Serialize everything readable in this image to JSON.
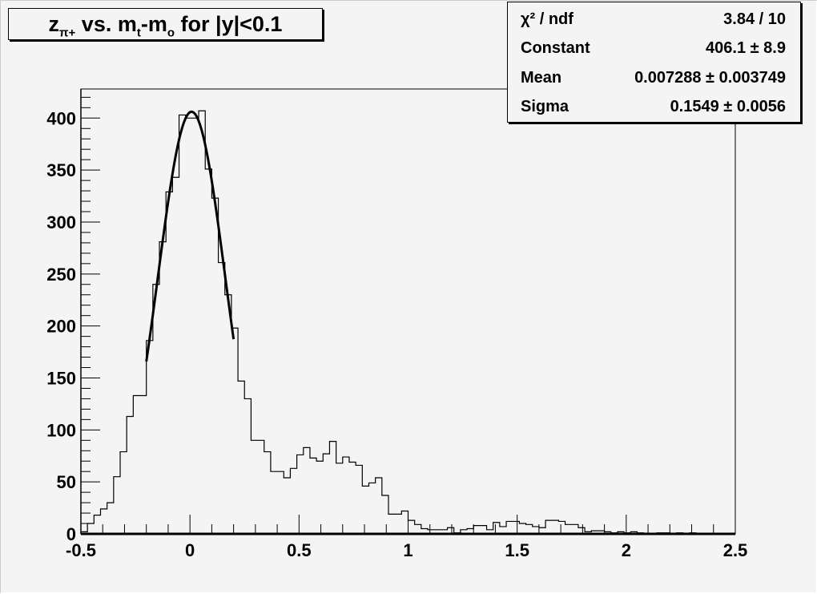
{
  "title": {
    "main": "z",
    "sub": "π+",
    "rest1": " vs. m",
    "sub2": "t",
    "rest2": "-m",
    "sub3": "o",
    "rest3": " for |y|<0.1"
  },
  "stats": [
    {
      "label": "χ² / ndf",
      "value": "3.84 / 10"
    },
    {
      "label": "Constant",
      "value": "406.1 ± 8.9"
    },
    {
      "label": "Mean",
      "value": "0.007288 ± 0.003749"
    },
    {
      "label": "Sigma",
      "value": "0.1549 ± 0.0056"
    }
  ],
  "chart_data": {
    "type": "histogram",
    "xlim": [
      -0.5,
      2.5
    ],
    "ylim": [
      0,
      428
    ],
    "bin_width": 0.03,
    "x_ticks": [
      "-0.5",
      "0",
      "0.5",
      "1",
      "1.5",
      "2",
      "2.5"
    ],
    "y_ticks": [
      "0",
      "50",
      "100",
      "150",
      "200",
      "250",
      "300",
      "350",
      "400"
    ],
    "values": [
      2,
      10,
      18,
      24,
      30,
      55,
      79,
      113,
      133,
      133,
      186,
      240,
      281,
      329,
      343,
      403,
      400,
      400,
      407,
      351,
      323,
      261,
      230,
      198,
      147,
      130,
      90,
      90,
      79,
      60,
      60,
      54,
      63,
      76,
      83,
      73,
      70,
      77,
      89,
      68,
      74,
      69,
      66,
      46,
      49,
      54,
      37,
      19,
      19,
      22,
      13,
      9,
      5,
      4,
      4,
      4,
      6,
      1,
      4,
      5,
      8,
      8,
      4,
      11,
      7,
      12,
      12,
      10,
      9,
      7,
      6,
      13,
      13,
      12,
      9,
      9,
      6,
      2,
      3,
      3,
      2,
      1,
      2,
      1,
      2,
      1,
      0,
      0,
      1,
      1,
      0,
      1,
      0,
      1,
      0,
      0,
      0,
      0,
      0,
      0
    ],
    "fit": {
      "function": "gaus",
      "constant": 406.1,
      "mean": 0.007288,
      "sigma": 0.1549,
      "range": [
        -0.2,
        0.2
      ]
    },
    "colors": {
      "histogram": "#000000",
      "fit": "#000000",
      "background": "#f4f4f4"
    }
  }
}
